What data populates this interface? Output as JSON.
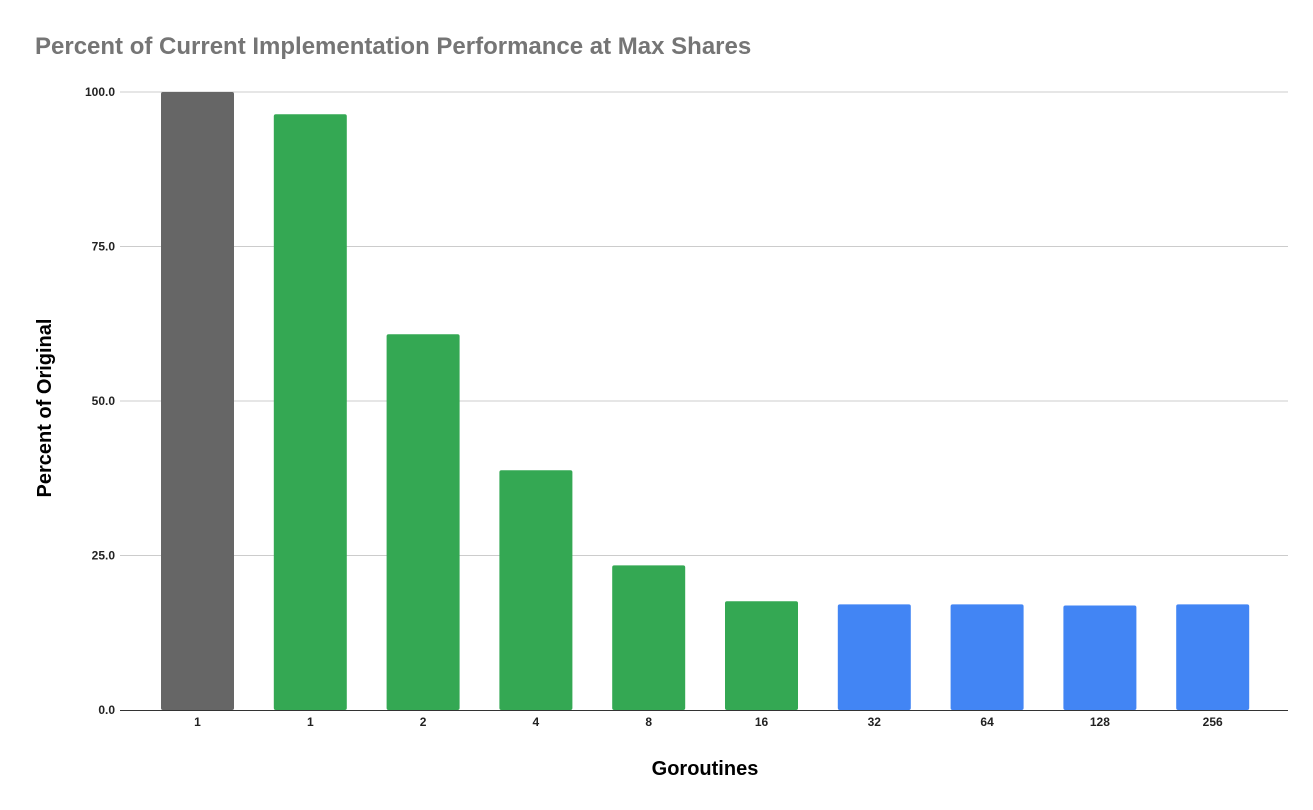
{
  "chart_data": {
    "type": "bar",
    "title": "Percent of Current Implementation Performance at Max Shares",
    "xlabel": "Goroutines",
    "ylabel": "Percent of Original",
    "categories": [
      "1",
      "1",
      "2",
      "4",
      "8",
      "16",
      "32",
      "64",
      "128",
      "256"
    ],
    "values": [
      100.0,
      96.4,
      60.8,
      38.8,
      23.4,
      17.6,
      17.1,
      17.1,
      16.9,
      17.1
    ],
    "bar_colors": [
      "#666666",
      "#34a853",
      "#34a853",
      "#34a853",
      "#34a853",
      "#34a853",
      "#4285f4",
      "#4285f4",
      "#4285f4",
      "#4285f4"
    ],
    "ylim": [
      0,
      100
    ],
    "yticks": [
      "0.0",
      "25.0",
      "50.0",
      "75.0",
      "100.0"
    ],
    "ytick_values": [
      0,
      25,
      50,
      75,
      100
    ],
    "grid": true,
    "legend": "none",
    "colors": {
      "title": "#757575",
      "gridline": "#cccccc",
      "axis": "#333333"
    }
  }
}
